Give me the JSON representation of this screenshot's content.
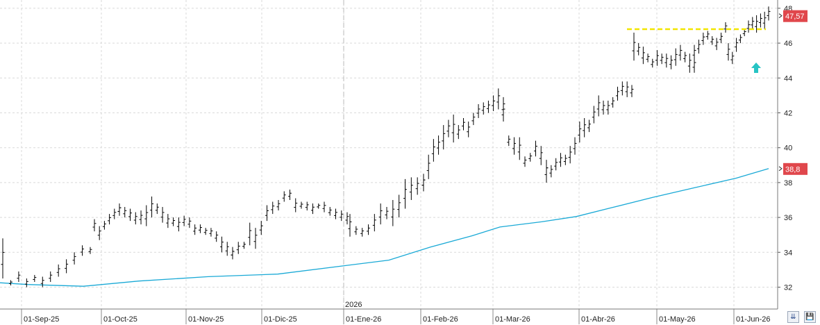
{
  "chart_data": {
    "type": "bar",
    "subtype": "ohlc",
    "x_labels": [
      "01-Sep-25",
      "01-Oct-25",
      "01-Nov-25",
      "01-Dic-25",
      "01-Ene-26",
      "01-Feb-26",
      "01-Mar-26",
      "01-Abr-26",
      "01-May-26",
      "01-Jun-26"
    ],
    "year_marker": "2026",
    "y_ticks": [
      "32",
      "34",
      "36",
      "38",
      "40",
      "42",
      "44",
      "46",
      "48"
    ],
    "ylim": [
      30.8,
      48.4
    ],
    "grid": true,
    "last_price": "47,57",
    "moving_average_last": "38,8",
    "resistance_level": 46.8,
    "colors": {
      "bars": "#000000",
      "moving_average": "#19a9d6",
      "resistance": "#f2e600",
      "price_tag": "#e0474c",
      "arrow": "#27c4c4",
      "grid": "#d9d9d9"
    },
    "sma_series": [
      [
        0,
        32.25
      ],
      [
        40,
        32.15
      ],
      [
        120,
        32.05
      ],
      [
        200,
        32.35
      ],
      [
        300,
        32.6
      ],
      [
        400,
        32.75
      ],
      [
        500,
        33.25
      ],
      [
        560,
        33.55
      ],
      [
        620,
        34.3
      ],
      [
        680,
        34.95
      ],
      [
        720,
        35.45
      ],
      [
        780,
        35.75
      ],
      [
        830,
        36.05
      ],
      [
        880,
        36.55
      ],
      [
        940,
        37.15
      ],
      [
        1000,
        37.7
      ],
      [
        1060,
        38.25
      ],
      [
        1107,
        38.8
      ]
    ],
    "ohlc_segments": [
      {
        "x0": 4,
        "x1": 130,
        "points": [
          [
            32.5,
            34.8
          ],
          [
            32.1,
            32.4
          ],
          [
            32.3,
            32.9
          ],
          [
            32.0,
            32.5
          ],
          [
            32.3,
            32.7
          ],
          [
            32.0,
            32.6
          ],
          [
            32.3,
            32.9
          ],
          [
            32.6,
            33.3
          ],
          [
            32.8,
            33.6
          ],
          [
            33.3,
            34.0
          ],
          [
            33.8,
            34.4
          ],
          [
            33.9,
            34.3
          ]
        ]
      },
      {
        "x0": 136,
        "x1": 172,
        "points": [
          [
            35.2,
            35.9
          ],
          [
            34.7,
            35.5
          ],
          [
            35.3,
            35.8
          ],
          [
            35.6,
            36.2
          ],
          [
            35.9,
            36.5
          ],
          [
            36.1,
            36.8
          ]
        ]
      },
      {
        "x0": 172,
        "x1": 335,
        "points": [
          [
            36.1,
            36.8
          ],
          [
            36.0,
            36.6
          ],
          [
            35.8,
            36.5
          ],
          [
            35.6,
            36.3
          ],
          [
            35.6,
            36.4
          ],
          [
            35.5,
            36.7
          ],
          [
            36.0,
            37.2
          ],
          [
            36.2,
            36.8
          ],
          [
            35.7,
            36.6
          ],
          [
            35.4,
            36.2
          ],
          [
            35.5,
            36.0
          ],
          [
            35.2,
            36.0
          ],
          [
            35.5,
            36.1
          ],
          [
            35.4,
            36.0
          ],
          [
            35.0,
            35.6
          ],
          [
            35.1,
            35.6
          ],
          [
            35.0,
            35.4
          ],
          [
            34.9,
            35.4
          ],
          [
            34.6,
            35.2
          ],
          [
            34.0,
            34.9
          ],
          [
            33.8,
            34.6
          ],
          [
            33.6,
            34.3
          ]
        ]
      },
      {
        "x0": 335,
        "x1": 500,
        "points": [
          [
            33.6,
            34.3
          ],
          [
            33.9,
            34.6
          ],
          [
            34.2,
            34.6
          ],
          [
            34.4,
            35.7
          ],
          [
            34.2,
            35.4
          ],
          [
            35.0,
            35.8
          ],
          [
            35.8,
            36.7
          ],
          [
            36.2,
            36.9
          ],
          [
            36.4,
            37.0
          ],
          [
            36.9,
            37.5
          ],
          [
            37.0,
            37.6
          ],
          [
            36.3,
            37.1
          ],
          [
            36.5,
            36.9
          ],
          [
            36.4,
            36.9
          ],
          [
            36.2,
            36.8
          ],
          [
            36.5,
            36.8
          ],
          [
            36.3,
            36.9
          ],
          [
            36.1,
            36.6
          ],
          [
            35.9,
            36.5
          ],
          [
            35.8,
            36.4
          ],
          [
            35.6,
            36.3
          ]
        ]
      },
      {
        "x0": 504,
        "x1": 610,
        "points": [
          [
            34.9,
            36.2
          ],
          [
            35.0,
            35.5
          ],
          [
            34.9,
            35.4
          ],
          [
            35.0,
            35.6
          ],
          [
            35.2,
            36.2
          ],
          [
            35.6,
            36.8
          ],
          [
            35.9,
            36.6
          ],
          [
            35.5,
            37.0
          ],
          [
            36.0,
            37.3
          ],
          [
            36.5,
            38.2
          ],
          [
            37.0,
            38.3
          ],
          [
            37.3,
            38.3
          ],
          [
            37.5,
            38.5
          ]
        ]
      },
      {
        "x0": 610,
        "x1": 725,
        "points": [
          [
            37.5,
            38.5
          ],
          [
            38.2,
            39.6
          ],
          [
            39.2,
            40.5
          ],
          [
            39.6,
            40.7
          ],
          [
            39.9,
            41.3
          ],
          [
            40.6,
            41.6
          ],
          [
            40.3,
            41.9
          ],
          [
            40.5,
            41.3
          ],
          [
            41.0,
            41.7
          ],
          [
            40.6,
            41.5
          ],
          [
            41.3,
            42.0
          ],
          [
            41.7,
            42.5
          ],
          [
            41.9,
            42.6
          ],
          [
            42.0,
            42.7
          ],
          [
            42.1,
            43.0
          ],
          [
            42.2,
            43.4
          ],
          [
            41.8,
            42.9
          ]
        ]
      },
      {
        "x0": 725,
        "x1": 787,
        "points": [
          [
            41.5,
            42.6
          ],
          [
            40.1,
            40.7
          ],
          [
            39.6,
            40.6
          ],
          [
            39.3,
            40.6
          ],
          [
            38.9,
            39.5
          ],
          [
            39.2,
            39.7
          ],
          [
            39.5,
            40.4
          ],
          [
            39.0,
            40.1
          ],
          [
            38.0,
            39.3
          ]
        ]
      },
      {
        "x0": 787,
        "x1": 910,
        "points": [
          [
            38.0,
            39.3
          ],
          [
            38.3,
            39.0
          ],
          [
            38.7,
            39.4
          ],
          [
            38.9,
            39.7
          ],
          [
            39.0,
            39.6
          ],
          [
            39.1,
            40.1
          ],
          [
            39.6,
            40.6
          ],
          [
            40.3,
            41.5
          ],
          [
            40.6,
            41.7
          ],
          [
            40.9,
            41.6
          ],
          [
            41.4,
            42.4
          ],
          [
            41.8,
            43.0
          ],
          [
            41.9,
            42.7
          ],
          [
            41.9,
            42.7
          ],
          [
            42.3,
            42.9
          ],
          [
            42.7,
            43.5
          ],
          [
            43.0,
            43.8
          ],
          [
            42.9,
            43.8
          ],
          [
            42.9,
            43.6
          ]
        ]
      },
      {
        "x0": 913,
        "x1": 1000,
        "points": [
          [
            45.0,
            46.6
          ],
          [
            45.3,
            46.0
          ],
          [
            44.8,
            45.8
          ],
          [
            44.9,
            45.4
          ],
          [
            44.6,
            45.1
          ],
          [
            44.7,
            45.6
          ],
          [
            44.8,
            45.4
          ],
          [
            44.6,
            45.4
          ],
          [
            44.5,
            45.3
          ],
          [
            44.7,
            45.7
          ],
          [
            45.0,
            45.9
          ],
          [
            44.9,
            45.5
          ],
          [
            44.3,
            45.4
          ],
          [
            44.3,
            45.2
          ]
        ]
      },
      {
        "x0": 1000,
        "x1": 1045,
        "points": [
          [
            45.0,
            45.9
          ],
          [
            45.4,
            46.2
          ],
          [
            45.9,
            46.6
          ],
          [
            46.2,
            46.7
          ],
          [
            45.9,
            46.4
          ],
          [
            45.6,
            46.3
          ],
          [
            46.0,
            46.6
          ],
          [
            46.6,
            47.2
          ]
        ]
      },
      {
        "x0": 1049,
        "x1": 1107,
        "points": [
          [
            45.0,
            46.0
          ],
          [
            44.8,
            45.5
          ],
          [
            45.5,
            46.3
          ],
          [
            46.0,
            46.5
          ],
          [
            46.4,
            46.8
          ],
          [
            46.6,
            47.3
          ],
          [
            46.8,
            47.5
          ],
          [
            46.6,
            47.6
          ],
          [
            46.9,
            47.7
          ],
          [
            46.8,
            47.8
          ],
          [
            47.3,
            48.1
          ]
        ]
      }
    ]
  },
  "controls": {
    "scroll_down_glyph": "⇊",
    "save_glyph": "💾"
  }
}
